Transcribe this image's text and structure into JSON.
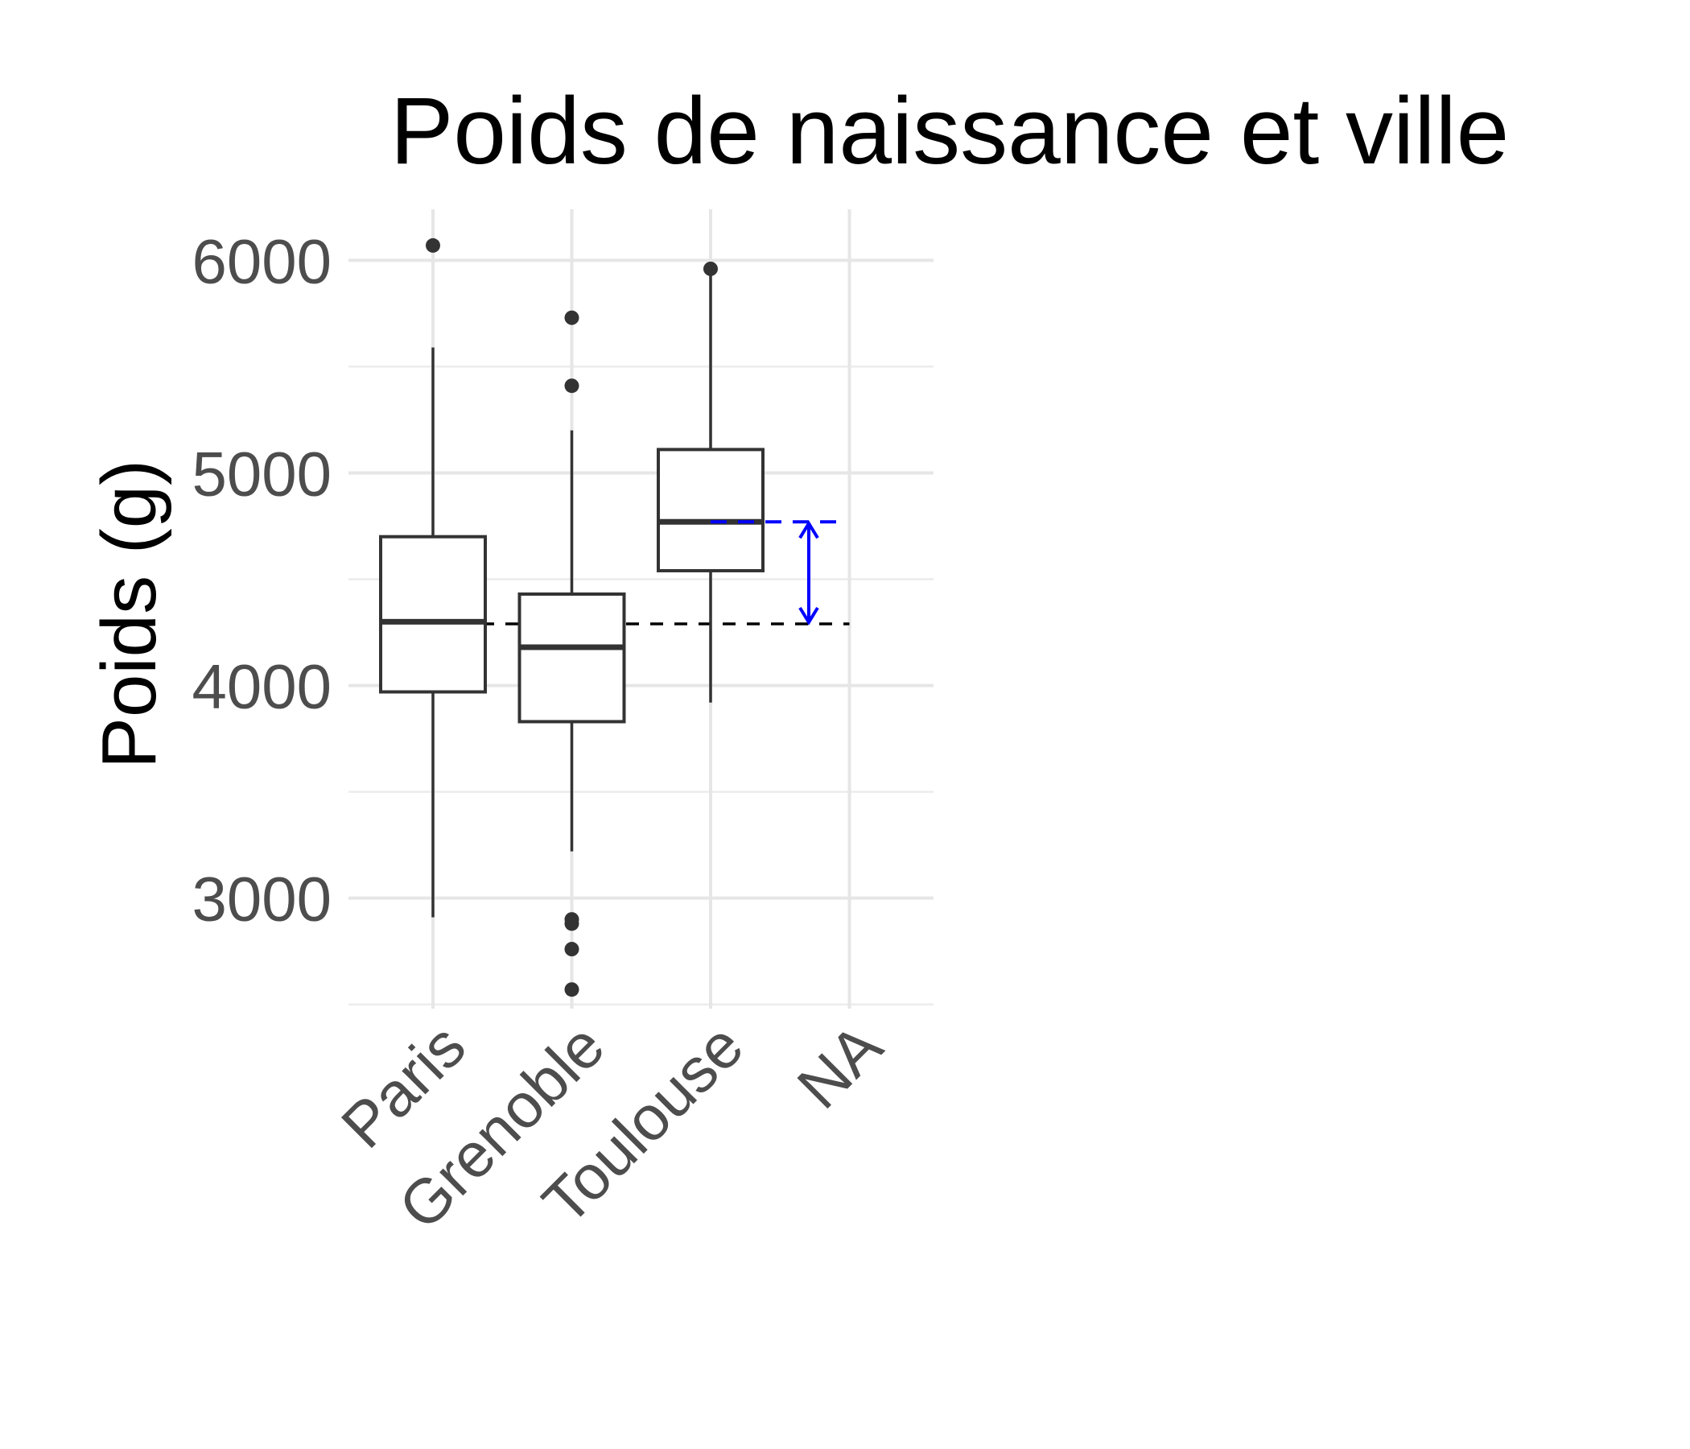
{
  "chart_data": {
    "type": "boxplot",
    "title": "Poids de naissance et ville",
    "xlabel": "",
    "ylabel": "Poids (g)",
    "ylim": [
      2480,
      6240
    ],
    "y_ticks": [
      3000,
      4000,
      5000,
      6000
    ],
    "y_minor_ticks": [
      2500,
      3500,
      4500,
      5500
    ],
    "grid": true,
    "categories": [
      "Paris",
      "Grenoble",
      "Toulouse",
      "NA"
    ],
    "boxes": [
      {
        "name": "Paris",
        "lower_whisker": 2910,
        "q1": 3970,
        "median": 4300,
        "q3": 4700,
        "upper_whisker": 5590,
        "outliers": [
          6070
        ]
      },
      {
        "name": "Grenoble",
        "lower_whisker": 3220,
        "q1": 3830,
        "median": 4180,
        "q3": 4430,
        "upper_whisker": 5200,
        "outliers": [
          5730,
          5410,
          2900,
          2880,
          2760,
          2570
        ]
      },
      {
        "name": "Toulouse",
        "lower_whisker": 3920,
        "q1": 4540,
        "median": 4770,
        "q3": 5110,
        "upper_whisker": 5960,
        "outliers": [
          5960
        ]
      }
    ],
    "reference_line": {
      "value": 4290,
      "from": "Paris",
      "to": "NA",
      "color": "#000000",
      "style": "dashed"
    },
    "difference_annotation": {
      "from_value": 4290,
      "to_value": 4770,
      "color": "#0000ff",
      "style": "dashed",
      "arrow": "double"
    }
  }
}
